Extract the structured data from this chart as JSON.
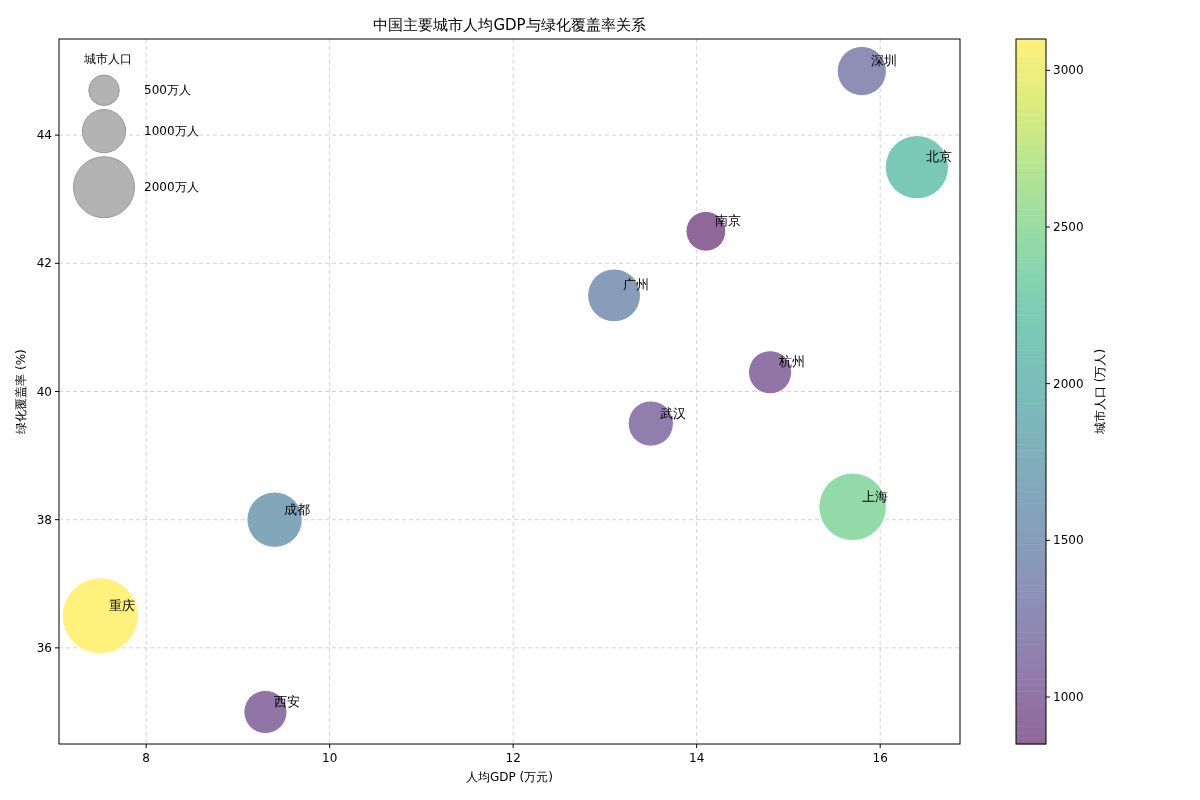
{
  "chart_data": {
    "type": "bubble",
    "title": "中国主要城市人均GDP与绿化覆盖率关系",
    "xlabel": "人均GDP (万元)",
    "ylabel": "绿化覆盖率 (%)",
    "clabel": "城市人口 (万人)",
    "legend_title": "城市人口",
    "series": [
      {
        "x": [
          15.8,
          16.4,
          14.1,
          13.1,
          14.8,
          13.5,
          15.7,
          9.4,
          7.5,
          9.3
        ],
        "values": [
          45.0,
          43.5,
          42.5,
          41.5,
          40.3,
          39.5,
          38.2,
          38.0,
          36.5,
          35.0
        ],
        "sizes": [
          1300,
          2150,
          850,
          1500,
          1000,
          1100,
          2450,
          1650,
          3100,
          1000
        ],
        "cvalues": [
          1300,
          2150,
          850,
          1500,
          1000,
          1100,
          2450,
          1650,
          3100,
          1000
        ]
      }
    ],
    "size_legend": [
      {
        "value": 500,
        "label": "500万人"
      },
      {
        "value": 1000,
        "label": "1000万人"
      },
      {
        "value": 2000,
        "label": "2000万人"
      }
    ],
    "annotations": [
      {
        "text": "深圳",
        "x": 15.8,
        "y": 45.0
      },
      {
        "text": "北京",
        "x": 16.4,
        "y": 43.5
      },
      {
        "text": "南京",
        "x": 14.1,
        "y": 42.5
      },
      {
        "text": "广州",
        "x": 13.1,
        "y": 41.5
      },
      {
        "text": "杭州",
        "x": 14.8,
        "y": 40.3
      },
      {
        "text": "武汉",
        "x": 13.5,
        "y": 39.5
      },
      {
        "text": "上海",
        "x": 15.7,
        "y": 38.2
      },
      {
        "text": "成都",
        "x": 9.4,
        "y": 38.0
      },
      {
        "text": "重庆",
        "x": 7.5,
        "y": 36.5
      },
      {
        "text": "西安",
        "x": 9.3,
        "y": 35.0
      }
    ],
    "xlim": [
      7.05,
      16.87
    ],
    "ylim": [
      34.5,
      45.5
    ],
    "xticks": [
      8,
      10,
      12,
      14,
      16
    ],
    "yticks": [
      36,
      38,
      40,
      42,
      44
    ],
    "clim": [
      850,
      3100
    ],
    "cticks": [
      1000,
      1500,
      2000,
      2500,
      3000
    ],
    "grid": true,
    "marker": "circle"
  }
}
